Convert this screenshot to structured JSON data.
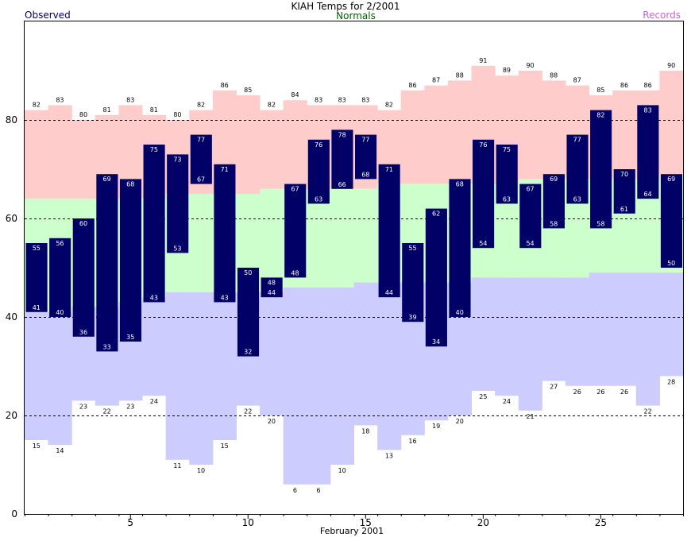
{
  "chart_data": {
    "type": "bar",
    "title": "KIAH Temps for 2/2001",
    "legend": {
      "observed": "Observed",
      "normals": "Normals",
      "records": "Records"
    },
    "xlabel": "February 2001",
    "ylabel": "",
    "ylim": [
      0,
      100
    ],
    "yticks": [
      0,
      20,
      40,
      60,
      80
    ],
    "xticks": [
      5,
      10,
      15,
      20,
      25
    ],
    "days": [
      1,
      2,
      3,
      4,
      5,
      6,
      7,
      8,
      9,
      10,
      11,
      12,
      13,
      14,
      15,
      16,
      17,
      18,
      19,
      20,
      21,
      22,
      23,
      24,
      25,
      26,
      27,
      28
    ],
    "series": [
      {
        "name": "Records",
        "key": "record_high",
        "values": [
          82,
          83,
          80,
          81,
          83,
          81,
          80,
          82,
          86,
          85,
          82,
          84,
          83,
          83,
          83,
          82,
          86,
          87,
          88,
          91,
          89,
          90,
          88,
          87,
          85,
          86,
          86,
          90
        ]
      },
      {
        "name": "Records",
        "key": "record_low",
        "values": [
          15,
          14,
          23,
          22,
          23,
          24,
          11,
          10,
          15,
          22,
          20,
          6,
          6,
          10,
          18,
          13,
          16,
          19,
          20,
          25,
          24,
          21,
          27,
          26,
          26,
          26,
          22,
          28
        ]
      },
      {
        "name": "Normals",
        "key": "normal_high",
        "values": [
          64,
          64,
          64,
          64,
          64,
          64,
          65,
          65,
          65,
          65,
          66,
          66,
          66,
          66,
          66,
          67,
          67,
          67,
          67,
          67,
          67,
          68,
          68,
          68,
          68,
          68,
          68,
          69
        ]
      },
      {
        "name": "Normals",
        "key": "normal_low",
        "values": [
          41,
          41,
          42,
          42,
          43,
          44,
          45,
          45,
          45,
          45,
          45,
          46,
          46,
          46,
          47,
          47,
          47,
          47,
          47,
          48,
          48,
          48,
          48,
          48,
          49,
          49,
          49,
          49
        ]
      },
      {
        "name": "Observed",
        "key": "observed_high",
        "values": [
          55,
          56,
          60,
          69,
          68,
          75,
          73,
          77,
          71,
          50,
          48,
          67,
          76,
          78,
          77,
          71,
          55,
          62,
          68,
          76,
          75,
          67,
          69,
          77,
          82,
          70,
          83,
          69
        ]
      },
      {
        "name": "Observed",
        "key": "observed_low",
        "values": [
          41,
          40,
          36,
          33,
          35,
          43,
          53,
          67,
          43,
          32,
          44,
          48,
          63,
          66,
          68,
          44,
          39,
          34,
          40,
          54,
          63,
          54,
          58,
          63,
          58,
          61,
          64,
          50
        ]
      }
    ],
    "colors": {
      "record_band": "#ffcccc",
      "normal_band": "#ccffcc",
      "low_band": "#ccccff",
      "observed_bar": "#000066",
      "title": "#000000",
      "observed_legend": "#000066",
      "normals_legend": "#006600",
      "records_legend": "#cc66cc"
    },
    "grid": "dashed-horizontal"
  }
}
